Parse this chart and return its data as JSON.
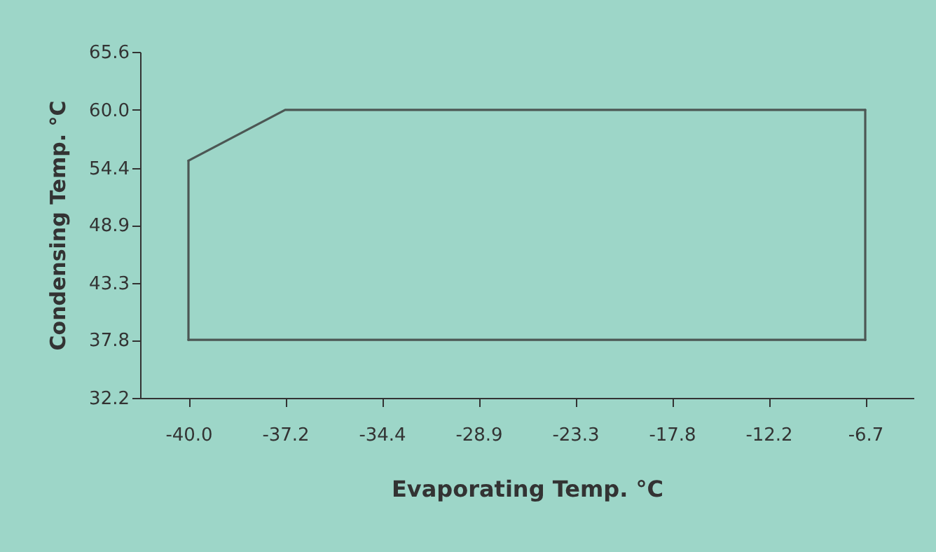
{
  "chart_data": {
    "type": "line",
    "xlabel": "Evaporating Temp. °C",
    "ylabel": "Condensing Temp. °C",
    "categories": [
      "-40.0",
      "-37.2",
      "-34.4",
      "-28.9",
      "-23.3",
      "-17.8",
      "-12.2",
      "-6.7"
    ],
    "series": [
      {
        "color": "#4c5754",
        "x": [
          "-40.0",
          "-37.2",
          "-6.7"
        ],
        "values": [
          55.1,
          60.0,
          60.0
        ]
      },
      {
        "color": "#4c5754",
        "x": [
          "-6.7",
          "-6.7"
        ],
        "values": [
          60.0,
          37.8
        ]
      },
      {
        "color": "#4c5754",
        "x": [
          "-40.0",
          "-6.7"
        ],
        "values": [
          37.8,
          37.8
        ]
      },
      {
        "color": "#4c5754",
        "x": [
          "-40.0",
          "-40.0"
        ],
        "values": [
          37.8,
          55.1
        ]
      }
    ],
    "ylim": [
      32.2,
      65.6
    ],
    "yticks": [
      32.2,
      37.8,
      43.3,
      48.9,
      54.4,
      {
        "value": 60,
        "label": "60.0"
      },
      65.6
    ],
    "line_style": "solid"
  }
}
